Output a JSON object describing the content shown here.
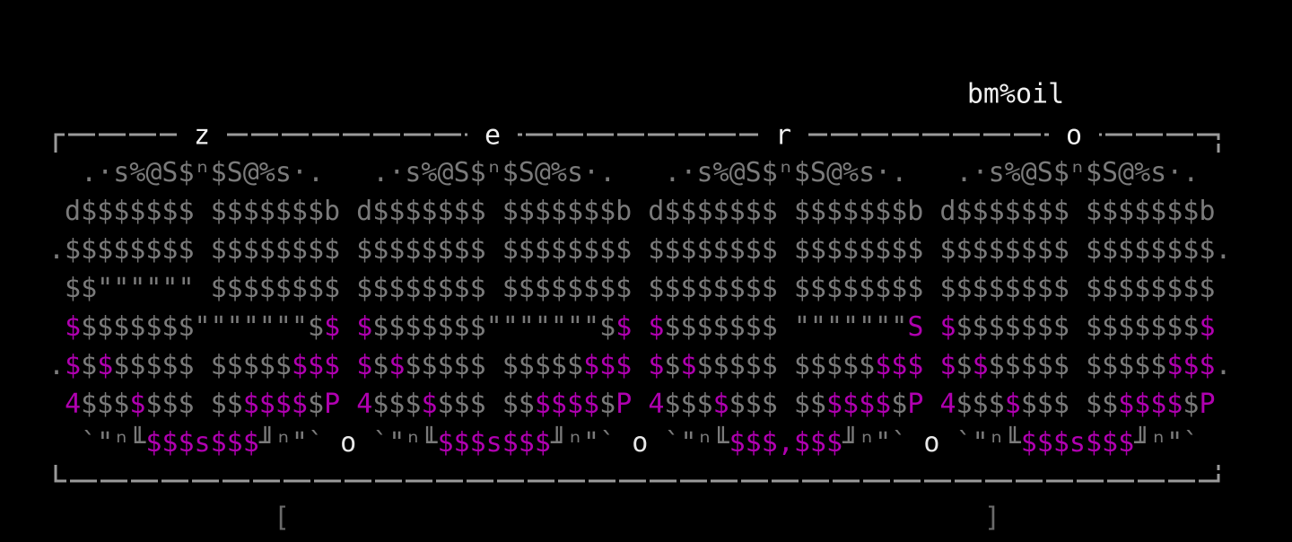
{
  "title": "bm%oil",
  "frame_labels": [
    "z",
    "e",
    "r",
    "o"
  ],
  "art": [
    [
      {
        "text": "  .·s%@S$ⁿ$S@%s·.   .·s%@S$ⁿ$S@%s·.   .·s%@S$ⁿ$S@%s·.   .·s%@S$ⁿ$S@%s·. ",
        "color": "#7a7a7a"
      }
    ],
    [
      {
        "text": " d$$$$$$$ $$$$$$$b d$$$$$$$ $$$$$$$b d$$$$$$$ $$$$$$$b d$$$$$$$ $$$$$$$b",
        "color": "#7a7a7a"
      }
    ],
    [
      {
        "text": ".$$$$$$$$ $$$$$$$$ $$$$$$$$ $$$$$$$$ $$$$$$$$ $$$$$$$$ $$$$$$$$ $$$$$$$$.",
        "color": "#7a7a7a"
      }
    ],
    [
      {
        "text": " $$\"\"\"\"\"\" $$$$$$$$ $$$$$$$$ $$$$$$$$ $$$$$$$$ $$$$$$$$ $$$$$$$$ $$$$$$$$",
        "color": "#7a7a7a"
      }
    ],
    [
      {
        "text": " ",
        "color": "#7a7a7a"
      },
      {
        "text": "$",
        "color": "#b000b0"
      },
      {
        "text": "$$$$$$$\"\"\"\"\"\"\"$",
        "color": "#7a7a7a"
      },
      {
        "text": "$",
        "color": "#b000b0"
      },
      {
        "text": " ",
        "color": "#7a7a7a"
      },
      {
        "text": "$",
        "color": "#b000b0"
      },
      {
        "text": "$$$$$$$\"\"\"\"\"\"\"$",
        "color": "#7a7a7a"
      },
      {
        "text": "$",
        "color": "#b000b0"
      },
      {
        "text": " ",
        "color": "#7a7a7a"
      },
      {
        "text": "$",
        "color": "#b000b0"
      },
      {
        "text": "$$$$$$$ \"\"\"\"\"\"\"",
        "color": "#7a7a7a"
      },
      {
        "text": "S",
        "color": "#b000b0"
      },
      {
        "text": " ",
        "color": "#7a7a7a"
      },
      {
        "text": "$",
        "color": "#b000b0"
      },
      {
        "text": "$$$$$$$ $$$$$$$",
        "color": "#7a7a7a"
      },
      {
        "text": "$",
        "color": "#b000b0"
      }
    ],
    [
      {
        "text": ".",
        "color": "#7a7a7a"
      },
      {
        "text": "$",
        "color": "#b000b0"
      },
      {
        "text": "$",
        "color": "#7a7a7a"
      },
      {
        "text": "$",
        "color": "#b000b0"
      },
      {
        "text": "$$$$$ $$$$$",
        "color": "#7a7a7a"
      },
      {
        "text": "$$$",
        "color": "#b000b0"
      },
      {
        "text": " ",
        "color": "#7a7a7a"
      },
      {
        "text": "$",
        "color": "#b000b0"
      },
      {
        "text": "$",
        "color": "#7a7a7a"
      },
      {
        "text": "$",
        "color": "#b000b0"
      },
      {
        "text": "$$$$$ $$$$$",
        "color": "#7a7a7a"
      },
      {
        "text": "$$$",
        "color": "#b000b0"
      },
      {
        "text": " ",
        "color": "#7a7a7a"
      },
      {
        "text": "$",
        "color": "#b000b0"
      },
      {
        "text": "$",
        "color": "#7a7a7a"
      },
      {
        "text": "$",
        "color": "#b000b0"
      },
      {
        "text": "$$$$$ $$$$$",
        "color": "#7a7a7a"
      },
      {
        "text": "$$$",
        "color": "#b000b0"
      },
      {
        "text": " ",
        "color": "#7a7a7a"
      },
      {
        "text": "$",
        "color": "#b000b0"
      },
      {
        "text": "$",
        "color": "#7a7a7a"
      },
      {
        "text": "$",
        "color": "#b000b0"
      },
      {
        "text": "$$$$$ $$$$$",
        "color": "#7a7a7a"
      },
      {
        "text": "$$$",
        "color": "#b000b0"
      },
      {
        "text": ".",
        "color": "#7a7a7a"
      }
    ],
    [
      {
        "text": " ",
        "color": "#7a7a7a"
      },
      {
        "text": "4",
        "color": "#b000b0"
      },
      {
        "text": "$$$",
        "color": "#7a7a7a"
      },
      {
        "text": "$",
        "color": "#b000b0"
      },
      {
        "text": "$$$ $$",
        "color": "#7a7a7a"
      },
      {
        "text": "$$$$",
        "color": "#b000b0"
      },
      {
        "text": "$",
        "color": "#7a7a7a"
      },
      {
        "text": "P",
        "color": "#b000b0"
      },
      {
        "text": " ",
        "color": "#7a7a7a"
      },
      {
        "text": "4",
        "color": "#b000b0"
      },
      {
        "text": "$$$",
        "color": "#7a7a7a"
      },
      {
        "text": "$",
        "color": "#b000b0"
      },
      {
        "text": "$$$ $$",
        "color": "#7a7a7a"
      },
      {
        "text": "$$$$",
        "color": "#b000b0"
      },
      {
        "text": "$",
        "color": "#7a7a7a"
      },
      {
        "text": "P",
        "color": "#b000b0"
      },
      {
        "text": " ",
        "color": "#7a7a7a"
      },
      {
        "text": "4",
        "color": "#b000b0"
      },
      {
        "text": "$$$",
        "color": "#7a7a7a"
      },
      {
        "text": "$",
        "color": "#b000b0"
      },
      {
        "text": "$$$ $$",
        "color": "#7a7a7a"
      },
      {
        "text": "$$$$",
        "color": "#b000b0"
      },
      {
        "text": "$",
        "color": "#7a7a7a"
      },
      {
        "text": "P",
        "color": "#b000b0"
      },
      {
        "text": " ",
        "color": "#7a7a7a"
      },
      {
        "text": "4",
        "color": "#b000b0"
      },
      {
        "text": "$$$",
        "color": "#7a7a7a"
      },
      {
        "text": "$",
        "color": "#b000b0"
      },
      {
        "text": "$$$ $$",
        "color": "#7a7a7a"
      },
      {
        "text": "$$$$",
        "color": "#b000b0"
      },
      {
        "text": "$",
        "color": "#7a7a7a"
      },
      {
        "text": "P",
        "color": "#b000b0"
      }
    ],
    [
      {
        "text": "  `\"ⁿ╙",
        "color": "#7a7a7a"
      },
      {
        "text": "$$$s$$$",
        "color": "#b000b0"
      },
      {
        "text": "╜ⁿ\"` ",
        "color": "#7a7a7a"
      },
      {
        "text": "o",
        "color": "#e8e8e8"
      },
      {
        "text": " `\"ⁿ╙",
        "color": "#7a7a7a"
      },
      {
        "text": "$$$s$$$",
        "color": "#b000b0"
      },
      {
        "text": "╜ⁿ\"` ",
        "color": "#7a7a7a"
      },
      {
        "text": "o",
        "color": "#e8e8e8"
      },
      {
        "text": " `\"ⁿ╙",
        "color": "#7a7a7a"
      },
      {
        "text": "$$$,$$$",
        "color": "#b000b0"
      },
      {
        "text": "╜ⁿ\"` ",
        "color": "#7a7a7a"
      },
      {
        "text": "o",
        "color": "#e8e8e8"
      },
      {
        "text": " `\"ⁿ╙",
        "color": "#7a7a7a"
      },
      {
        "text": "$$$s$$$",
        "color": "#b000b0"
      },
      {
        "text": "╜ⁿ\"` ",
        "color": "#7a7a7a"
      }
    ]
  ],
  "brackets": [
    "[",
    "]"
  ]
}
